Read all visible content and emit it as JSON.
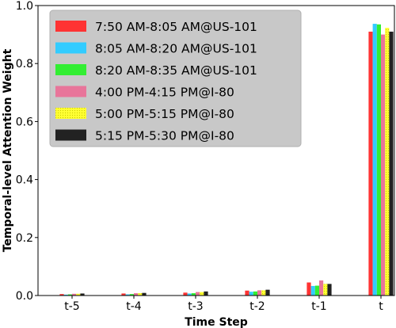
{
  "chart_data": {
    "type": "bar",
    "xlabel": "Time Step",
    "ylabel": "Temporal-level Attention Weight",
    "categories": [
      "t-5",
      "t-4",
      "t-3",
      "t-2",
      "t-1",
      "t"
    ],
    "ylim": [
      0,
      1.0
    ],
    "yticks": [
      "0.0",
      "0.2",
      "0.4",
      "0.6",
      "0.8",
      "1.0"
    ],
    "grid": false,
    "legend_position": "top-left",
    "series": [
      {
        "name": "7:50 AM-8:05 AM@US-101",
        "color": "#ff3333",
        "pattern": "solid",
        "values": [
          0.005,
          0.007,
          0.01,
          0.017,
          0.045,
          0.91
        ]
      },
      {
        "name": "8:05 AM-8:20 AM@US-101",
        "color": "#33ccff",
        "pattern": "solid",
        "values": [
          0.003,
          0.004,
          0.007,
          0.013,
          0.033,
          0.937
        ]
      },
      {
        "name": "8:20 AM-8:35 AM@US-101",
        "color": "#33ee33",
        "pattern": "solid",
        "values": [
          0.004,
          0.005,
          0.008,
          0.014,
          0.034,
          0.935
        ]
      },
      {
        "name": "4:00 PM-4:15 PM@I-80",
        "color": "#e8759a",
        "pattern": "solid",
        "values": [
          0.006,
          0.008,
          0.012,
          0.018,
          0.052,
          0.9
        ]
      },
      {
        "name": "5:00 PM-5:15 PM@I-80",
        "color": "#ffff33",
        "pattern": "dots",
        "values": [
          0.006,
          0.008,
          0.012,
          0.018,
          0.04,
          0.923
        ]
      },
      {
        "name": "5:15 PM-5:30 PM@I-80",
        "color": "#222222",
        "pattern": "solid",
        "values": [
          0.007,
          0.009,
          0.014,
          0.02,
          0.04,
          0.91
        ]
      }
    ]
  }
}
